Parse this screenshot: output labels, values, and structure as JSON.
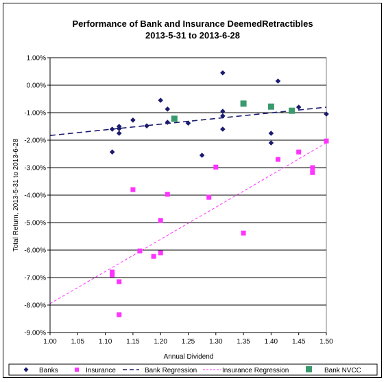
{
  "chart_data": {
    "type": "scatter",
    "title": "Performance of Bank and Insurance DeemedRetractibles",
    "subtitle": "2013-5-31 to 2013-6-28",
    "xlabel": "Annual Dividend",
    "ylabel": "Total Return, 2013-5-31 to 2013-6-28",
    "xlim": [
      1.0,
      1.5
    ],
    "ylim": [
      -9.0,
      1.0
    ],
    "x_ticks": [
      "1.00",
      "1.05",
      "1.10",
      "1.15",
      "1.20",
      "1.25",
      "1.30",
      "1.35",
      "1.40",
      "1.45",
      "1.50"
    ],
    "y_ticks": [
      "1.00%",
      "0.00%",
      "-1.00%",
      "-2.00%",
      "-3.00%",
      "-4.00%",
      "-5.00%",
      "-6.00%",
      "-7.00%",
      "-8.00%",
      "-9.00%"
    ],
    "grid": "horizontal",
    "legend_position": "bottom",
    "series": [
      {
        "name": "Banks",
        "marker": "diamond",
        "color": "#1a1a6e",
        "points": [
          [
            1.1125,
            -1.6
          ],
          [
            1.1125,
            -2.43
          ],
          [
            1.125,
            -1.5
          ],
          [
            1.125,
            -1.58
          ],
          [
            1.125,
            -1.75
          ],
          [
            1.15,
            -1.27
          ],
          [
            1.175,
            -1.48
          ],
          [
            1.2,
            -0.55
          ],
          [
            1.2125,
            -0.87
          ],
          [
            1.2125,
            -1.35
          ],
          [
            1.25,
            -1.38
          ],
          [
            1.275,
            -2.55
          ],
          [
            1.3125,
            0.45
          ],
          [
            1.3125,
            -0.95
          ],
          [
            1.3125,
            -1.12
          ],
          [
            1.3125,
            -1.6
          ],
          [
            1.4,
            -1.75
          ],
          [
            1.4,
            -2.1
          ],
          [
            1.4125,
            0.15
          ],
          [
            1.45,
            -0.8
          ],
          [
            1.5,
            -1.05
          ]
        ]
      },
      {
        "name": "Insurance",
        "marker": "square",
        "color": "#ff33ff",
        "points": [
          [
            1.1125,
            -6.8
          ],
          [
            1.1125,
            -6.9
          ],
          [
            1.125,
            -7.15
          ],
          [
            1.125,
            -8.35
          ],
          [
            1.15,
            -3.8
          ],
          [
            1.1625,
            -6.03
          ],
          [
            1.1875,
            -6.23
          ],
          [
            1.2,
            -6.1
          ],
          [
            1.2,
            -4.92
          ],
          [
            1.2125,
            -3.97
          ],
          [
            1.2875,
            -4.08
          ],
          [
            1.3,
            -2.98
          ],
          [
            1.35,
            -5.38
          ],
          [
            1.4125,
            -2.7
          ],
          [
            1.45,
            -2.43
          ],
          [
            1.475,
            -3.0
          ],
          [
            1.475,
            -3.18
          ],
          [
            1.5,
            -2.03
          ]
        ]
      },
      {
        "name": "Bank NVCC",
        "marker": "square",
        "color": "#3a9a6e",
        "points": [
          [
            1.225,
            -1.22
          ],
          [
            1.35,
            -0.67
          ],
          [
            1.4,
            -0.78
          ],
          [
            1.4375,
            -0.93
          ]
        ]
      }
    ],
    "regressions": [
      {
        "name": "Bank Regression",
        "color": "#1a1a6e",
        "style": "dashed-long",
        "points": [
          [
            1.0,
            -1.83
          ],
          [
            1.5,
            -0.8
          ]
        ]
      },
      {
        "name": "Insurance Regression",
        "color": "#ff33ff",
        "style": "dashed-short",
        "points": [
          [
            1.0,
            -7.95
          ],
          [
            1.5,
            -2.1
          ]
        ]
      }
    ]
  }
}
